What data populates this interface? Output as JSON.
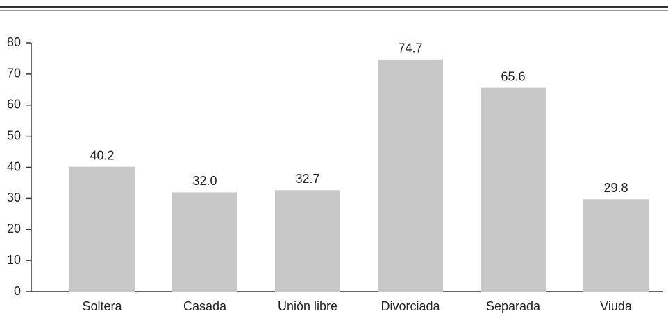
{
  "chart_data": {
    "type": "bar",
    "categories": [
      "Soltera",
      "Casada",
      "Unión libre",
      "Divorciada",
      "Separada",
      "Viuda"
    ],
    "values": [
      40.2,
      32,
      32.7,
      74.7,
      65.6,
      29.8
    ],
    "value_labels": [
      "40.2",
      "32.0",
      "32.7",
      "74.7",
      "65.6",
      "29.8"
    ],
    "color": "#c8c8c8",
    "ylim": [
      0,
      80
    ],
    "yticks": [
      0,
      10,
      20,
      30,
      40,
      50,
      60,
      70,
      80
    ],
    "grid": false
  }
}
